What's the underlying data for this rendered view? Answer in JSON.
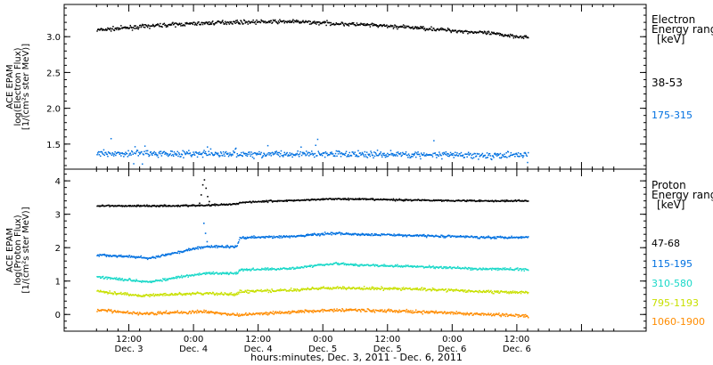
{
  "chart_data": [
    {
      "type": "scatter",
      "panel": "electron",
      "ylabel_lines": [
        "ACE EPAM",
        "log(Electron Flux)",
        "[1/(cm²s ster MeV)]"
      ],
      "yticks": [
        "1.5",
        "2.0",
        "2.5",
        "3.0"
      ],
      "ytick_values": [
        1.5,
        2.0,
        2.5,
        3.0
      ],
      "ylim": [
        1.15,
        3.45
      ],
      "legend_title": [
        "Electron",
        "Energy range",
        "[keV]"
      ],
      "series": [
        {
          "name": "38-53",
          "color": "#000000",
          "x": [
            0,
            12,
            24,
            36,
            48,
            60,
            72,
            80
          ],
          "y": [
            3.1,
            3.17,
            3.21,
            3.22,
            3.18,
            3.13,
            3.06,
            3.0
          ],
          "noise": 0.025
        },
        {
          "name": "175-315",
          "color": "#0070e0",
          "x": [
            0,
            12,
            24,
            36,
            48,
            60,
            72,
            80
          ],
          "y": [
            1.38,
            1.38,
            1.37,
            1.37,
            1.37,
            1.36,
            1.35,
            1.36
          ],
          "noise": 0.045
        }
      ]
    },
    {
      "type": "scatter",
      "panel": "proton",
      "ylabel_lines": [
        "ACE EPAM",
        "log(Proton Flux)",
        "[1/(cm²s ster MeV)]"
      ],
      "yticks": [
        "0",
        "1",
        "2",
        "3",
        "4"
      ],
      "ytick_values": [
        0,
        1,
        2,
        3,
        4
      ],
      "ylim": [
        -0.5,
        4.35
      ],
      "legend_title": [
        "Proton",
        "Energy range",
        "[keV]"
      ],
      "series": [
        {
          "name": "47-68",
          "color": "#000000",
          "x": [
            0,
            10,
            20,
            22,
            26,
            26.5,
            30,
            36,
            44,
            48,
            60,
            72,
            80
          ],
          "y": [
            3.27,
            3.27,
            3.28,
            3.3,
            3.33,
            3.37,
            3.4,
            3.43,
            3.48,
            3.47,
            3.44,
            3.42,
            3.42
          ],
          "noise": 0.025
        },
        {
          "name": "115-195",
          "color": "#0070e0",
          "x": [
            0,
            6,
            10,
            14,
            20,
            26,
            26.5,
            36,
            44,
            48,
            60,
            72,
            80
          ],
          "y": [
            1.8,
            1.75,
            1.7,
            1.85,
            2.05,
            2.05,
            2.32,
            2.35,
            2.45,
            2.42,
            2.38,
            2.33,
            2.33
          ],
          "noise": 0.035
        },
        {
          "name": "310-580",
          "color": "#18d8c8",
          "x": [
            0,
            6,
            10,
            14,
            20,
            26,
            26.5,
            36,
            44,
            48,
            60,
            72,
            80
          ],
          "y": [
            1.15,
            1.05,
            1.0,
            1.1,
            1.25,
            1.25,
            1.35,
            1.4,
            1.55,
            1.5,
            1.45,
            1.38,
            1.37
          ],
          "noise": 0.035
        },
        {
          "name": "795-1193",
          "color": "#c8e000",
          "x": [
            0,
            8,
            14,
            20,
            26,
            26.5,
            36,
            44,
            48,
            60,
            72,
            80
          ],
          "y": [
            0.72,
            0.58,
            0.62,
            0.65,
            0.62,
            0.7,
            0.75,
            0.82,
            0.8,
            0.78,
            0.7,
            0.68
          ],
          "noise": 0.04
        },
        {
          "name": "1060-1900",
          "color": "#ff8c00",
          "x": [
            0,
            8,
            14,
            20,
            26,
            36,
            44,
            48,
            60,
            72,
            80
          ],
          "y": [
            0.15,
            0.05,
            0.08,
            0.1,
            0.0,
            0.1,
            0.15,
            0.15,
            0.1,
            0.02,
            -0.02
          ],
          "noise": 0.045
        }
      ]
    }
  ],
  "xaxis": {
    "xlim": [
      -6,
      102
    ],
    "ticks": [
      {
        "x": 6,
        "time": "12:00",
        "day": "Dec. 3"
      },
      {
        "x": 18,
        "time": "0:00",
        "day": "Dec. 4"
      },
      {
        "x": 30,
        "time": "12:00",
        "day": "Dec. 4"
      },
      {
        "x": 42,
        "time": "0:00",
        "day": "Dec. 5"
      },
      {
        "x": 54,
        "time": "12:00",
        "day": "Dec. 5"
      },
      {
        "x": 66,
        "time": "0:00",
        "day": "Dec. 6"
      },
      {
        "x": 78,
        "time": "12:00",
        "day": "Dec. 6"
      }
    ],
    "label": "hours:minutes, Dec.  3, 2011 - Dec.  6, 2011"
  }
}
